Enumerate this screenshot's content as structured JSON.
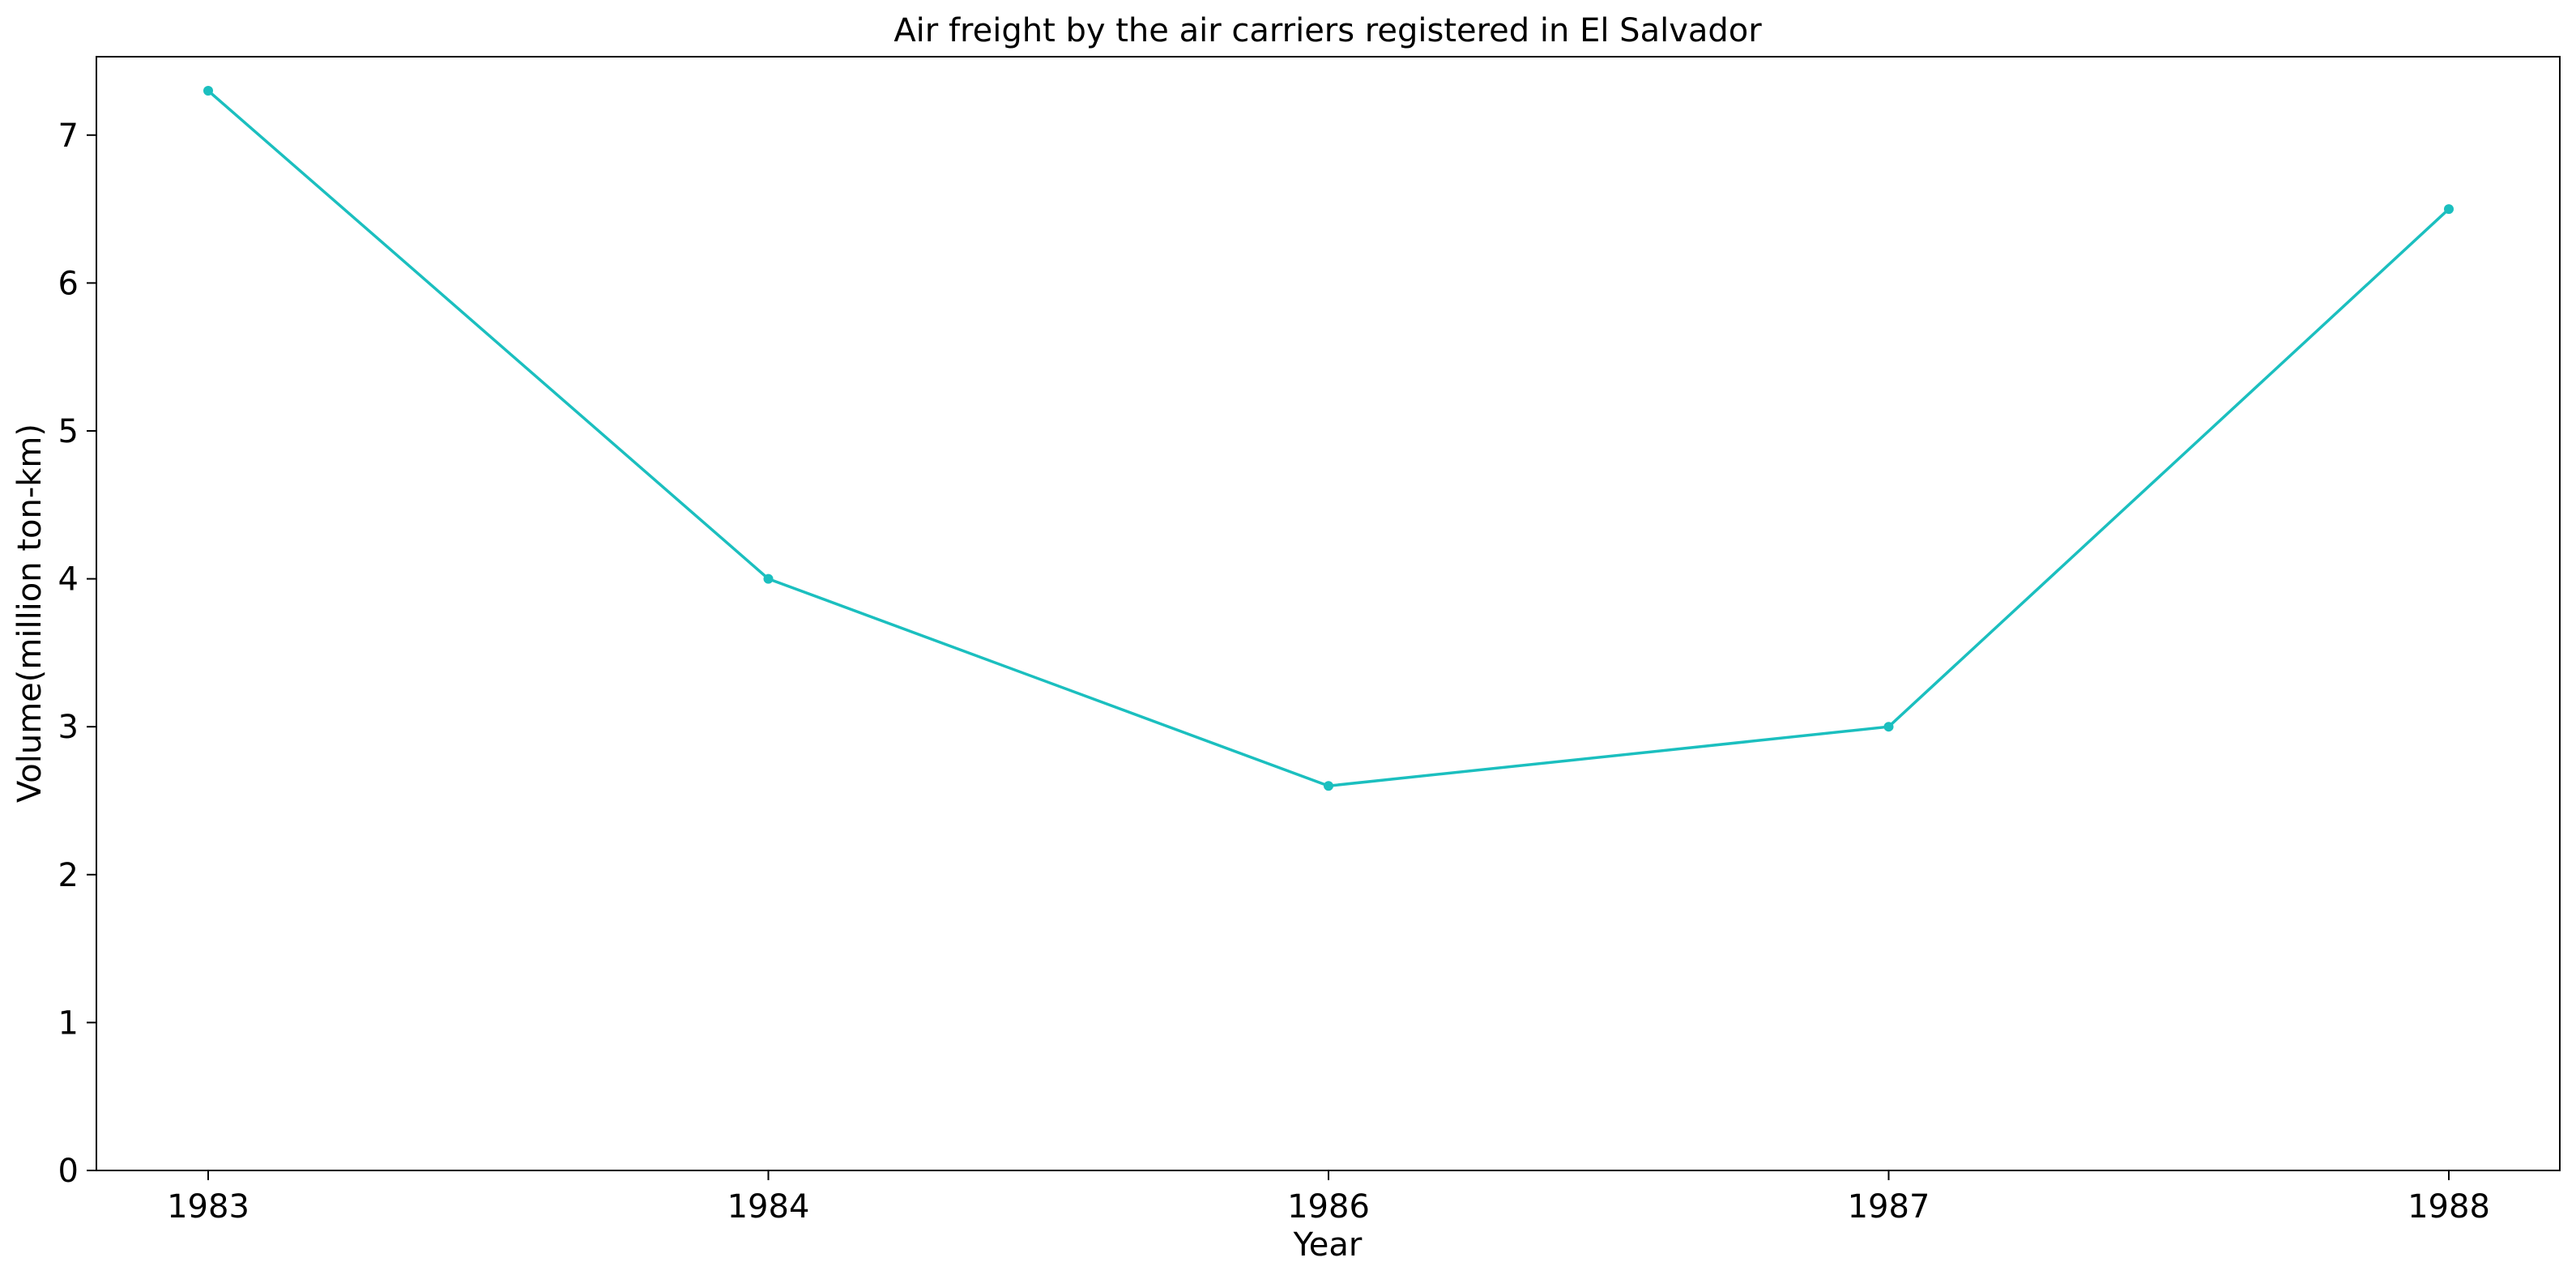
{
  "colors": {
    "series": "#1bbfbf",
    "background": "#ffffff",
    "axis": "#000000"
  },
  "chart_data": {
    "type": "line",
    "title": "Air freight by the air carriers registered in El Salvador",
    "xlabel": "Year",
    "ylabel": "Volume(million ton-km)",
    "categories": [
      "1983",
      "1984",
      "1986",
      "1987",
      "1988"
    ],
    "series": [
      {
        "values": [
          7.3,
          4.0,
          2.6,
          3.0,
          6.5
        ]
      }
    ],
    "ylim": [
      0,
      7.53
    ],
    "yticks": [
      0,
      1,
      2,
      3,
      4,
      5,
      6,
      7
    ],
    "grid": false,
    "legend": "none"
  }
}
